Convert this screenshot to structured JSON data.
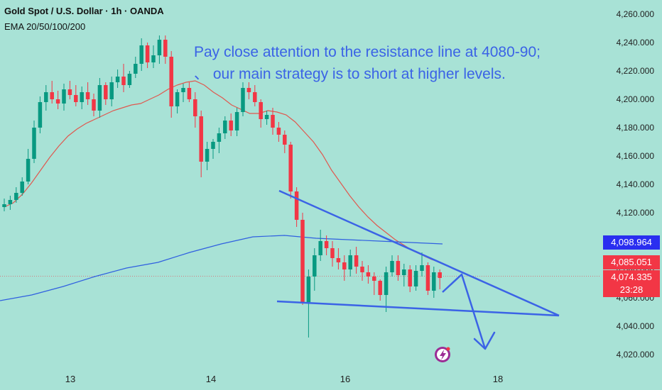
{
  "header": {
    "title": "Gold Spot / U.S. Dollar · 1h · OANDA",
    "indicator": "EMA 20/50/100/200"
  },
  "annotation": {
    "line1": "Pay close attention to the resistance line at 4080-90;",
    "line2": "、 our main strategy is to short at higher levels."
  },
  "price_tags": [
    {
      "value": "4,098.964",
      "color": "#2a2ef0"
    },
    {
      "value": "4,085.051",
      "color": "#f23645"
    },
    {
      "value": "4,074.335",
      "color": "#f23645"
    },
    {
      "value": "23:28",
      "color": "#f23645"
    }
  ],
  "colors": {
    "up": "#089981",
    "down": "#f23645",
    "ema_red": "#e0584f",
    "ema_blue": "#2f5fe0",
    "drawing": "#3b63e6"
  },
  "chart_data": {
    "type": "candlestick",
    "ylim": [
      4010,
      4270
    ],
    "y_ticks": [
      "4,020.000",
      "4,040.000",
      "4,060.000",
      "4,080.000",
      "4,100.000",
      "4,120.000",
      "4,140.000",
      "4,160.000",
      "4,180.000",
      "4,200.000",
      "4,220.000",
      "4,240.000",
      "4,260.000"
    ],
    "x_ticks": [
      "13",
      "14",
      "16",
      "18"
    ],
    "candles": [
      [
        4124,
        4130,
        4121,
        4126
      ],
      [
        4126,
        4132,
        4122,
        4129
      ],
      [
        4129,
        4138,
        4127,
        4134
      ],
      [
        4134,
        4145,
        4132,
        4142
      ],
      [
        4142,
        4165,
        4140,
        4158
      ],
      [
        4158,
        4185,
        4155,
        4180
      ],
      [
        4180,
        4202,
        4176,
        4198
      ],
      [
        4198,
        4210,
        4192,
        4205
      ],
      [
        4205,
        4213,
        4197,
        4200
      ],
      [
        4200,
        4206,
        4193,
        4197
      ],
      [
        4197,
        4211,
        4192,
        4207
      ],
      [
        4207,
        4213,
        4200,
        4203
      ],
      [
        4203,
        4210,
        4195,
        4198
      ],
      [
        4198,
        4209,
        4193,
        4205
      ],
      [
        4205,
        4212,
        4196,
        4200
      ],
      [
        4200,
        4204,
        4188,
        4192
      ],
      [
        4192,
        4215,
        4187,
        4210
      ],
      [
        4210,
        4212,
        4196,
        4200
      ],
      [
        4200,
        4216,
        4195,
        4212
      ],
      [
        4212,
        4221,
        4208,
        4216
      ],
      [
        4216,
        4225,
        4205,
        4210
      ],
      [
        4210,
        4220,
        4208,
        4218
      ],
      [
        4218,
        4230,
        4215,
        4225
      ],
      [
        4225,
        4243,
        4220,
        4238
      ],
      [
        4238,
        4240,
        4222,
        4226
      ],
      [
        4226,
        4238,
        4222,
        4231
      ],
      [
        4231,
        4245,
        4225,
        4242
      ],
      [
        4242,
        4245,
        4225,
        4230
      ],
      [
        4230,
        4234,
        4187,
        4195
      ],
      [
        4195,
        4207,
        4190,
        4205
      ],
      [
        4205,
        4211,
        4198,
        4208
      ],
      [
        4208,
        4212,
        4198,
        4200
      ],
      [
        4200,
        4205,
        4180,
        4188
      ],
      [
        4188,
        4192,
        4145,
        4156
      ],
      [
        4156,
        4170,
        4150,
        4165
      ],
      [
        4165,
        4172,
        4158,
        4170
      ],
      [
        4170,
        4180,
        4162,
        4176
      ],
      [
        4176,
        4188,
        4172,
        4185
      ],
      [
        4185,
        4190,
        4174,
        4178
      ],
      [
        4178,
        4194,
        4174,
        4191
      ],
      [
        4191,
        4212,
        4188,
        4208
      ],
      [
        4208,
        4212,
        4200,
        4205
      ],
      [
        4205,
        4210,
        4195,
        4198
      ],
      [
        4198,
        4200,
        4180,
        4186
      ],
      [
        4186,
        4192,
        4182,
        4189
      ],
      [
        4189,
        4194,
        4175,
        4180
      ],
      [
        4180,
        4184,
        4170,
        4175
      ],
      [
        4175,
        4178,
        4162,
        4168
      ],
      [
        4168,
        4170,
        4130,
        4135
      ],
      [
        4135,
        4138,
        4110,
        4115
      ],
      [
        4115,
        4120,
        4055,
        4057
      ],
      [
        4057,
        4080,
        4032,
        4075
      ],
      [
        4075,
        4095,
        4065,
        4090
      ],
      [
        4090,
        4108,
        4086,
        4100
      ],
      [
        4100,
        4104,
        4090,
        4095
      ],
      [
        4095,
        4100,
        4082,
        4088
      ],
      [
        4088,
        4095,
        4080,
        4085
      ],
      [
        4085,
        4090,
        4072,
        4080
      ],
      [
        4080,
        4094,
        4075,
        4090
      ],
      [
        4090,
        4096,
        4077,
        4082
      ],
      [
        4082,
        4086,
        4072,
        4078
      ],
      [
        4078,
        4083,
        4070,
        4075
      ],
      [
        4075,
        4078,
        4062,
        4072
      ],
      [
        4072,
        4073,
        4058,
        4062
      ],
      [
        4062,
        4082,
        4050,
        4078
      ],
      [
        4078,
        4090,
        4075,
        4086
      ],
      [
        4086,
        4090,
        4072,
        4076
      ],
      [
        4076,
        4084,
        4068,
        4080
      ],
      [
        4080,
        4083,
        4064,
        4068
      ],
      [
        4068,
        4083,
        4065,
        4079
      ],
      [
        4079,
        4092,
        4075,
        4083
      ],
      [
        4083,
        4085,
        4062,
        4065
      ],
      [
        4065,
        4082,
        4060,
        4078
      ],
      [
        4078,
        4080,
        4066,
        4074
      ]
    ],
    "ema_red": [
      4124,
      4127,
      4133,
      4141,
      4150,
      4159,
      4167,
      4174,
      4179,
      4183,
      4186,
      4189,
      4192,
      4194,
      4196,
      4197,
      4200,
      4203,
      4207,
      4210,
      4212,
      4213,
      4210,
      4205,
      4201,
      4196,
      4193,
      4190,
      4190,
      4192,
      4191,
      4189,
      4184,
      4177,
      4170,
      4161,
      4150,
      4141,
      4132,
      4124,
      4117,
      4111,
      4106,
      4101,
      4097,
      4093,
      4090,
      4087,
      4085
    ],
    "ema_blue": [
      4058,
      4062,
      4068,
      4075,
      4081,
      4085,
      4092,
      4098,
      4103,
      4104,
      4102,
      4101,
      4100,
      4099,
      4098
    ]
  }
}
